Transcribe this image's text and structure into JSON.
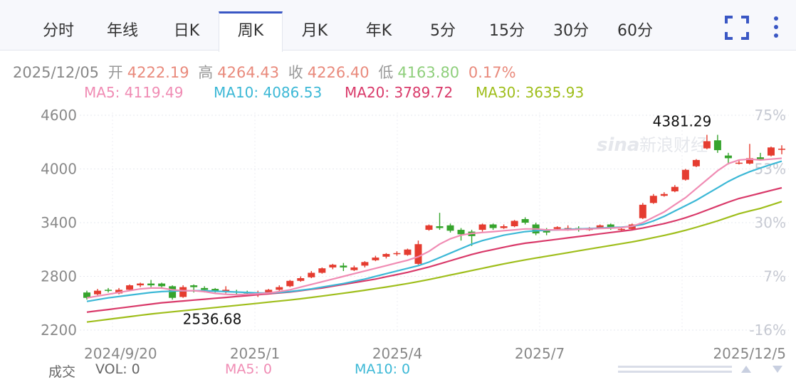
{
  "tabs": [
    "分时",
    "年线",
    "日K",
    "周K",
    "月K",
    "年K",
    "5分",
    "15分",
    "30分",
    "60分"
  ],
  "active_tab": "周K",
  "colors": {
    "up": "#e53c30",
    "down": "#36a42d",
    "accent": "#3a57c4",
    "ma5": "#f08cb4",
    "ma10": "#3cb8d6",
    "ma20": "#d93a6a",
    "ma30": "#9fbe1b"
  },
  "info": {
    "date": "2025/12/05",
    "open_label": "开",
    "open": "4222.19",
    "high_label": "高",
    "high": "4264.43",
    "close_label": "收",
    "close": "4226.40",
    "low_label": "低",
    "low": "4163.80",
    "change": "0.17%"
  },
  "ma_legend": {
    "ma5": "MA5: 4119.49",
    "ma10": "MA10: 4086.53",
    "ma20": "MA20: 3789.72",
    "ma30": "MA30: 3635.93"
  },
  "volume": {
    "label": "成交",
    "vol": "VOL: 0",
    "ma5": "MA5: 0",
    "ma10": "MA10: 0"
  },
  "watermark": {
    "logo": "sina",
    "text": "新浪财经"
  },
  "chart_data": {
    "type": "candlestick",
    "y_ticks": [
      "4600",
      "4000",
      "3400",
      "2800",
      "2200"
    ],
    "ylim": [
      2200,
      4600
    ],
    "right_ticks": [
      "75%",
      "53%",
      "30%",
      "7%",
      "-16%"
    ],
    "x_labels": [
      "2024/9/20",
      "2025/1",
      "2025/4",
      "2025/7",
      "2025/12/5"
    ],
    "annotations": {
      "high": "4381.29",
      "low": "2536.68"
    },
    "candles": [
      [
        2620,
        2560,
        2640,
        2540
      ],
      [
        2600,
        2640,
        2660,
        2590
      ],
      [
        2650,
        2640,
        2670,
        2620
      ],
      [
        2610,
        2650,
        2670,
        2600
      ],
      [
        2650,
        2700,
        2710,
        2640
      ],
      [
        2700,
        2720,
        2730,
        2680
      ],
      [
        2720,
        2700,
        2760,
        2680
      ],
      [
        2720,
        2690,
        2730,
        2660
      ],
      [
        2690,
        2560,
        2700,
        2540
      ],
      [
        2570,
        2680,
        2700,
        2560
      ],
      [
        2700,
        2680,
        2710,
        2620
      ],
      [
        2670,
        2650,
        2690,
        2620
      ],
      [
        2660,
        2640,
        2670,
        2620
      ],
      [
        2630,
        2650,
        2690,
        2610
      ],
      [
        2630,
        2620,
        2650,
        2600
      ],
      [
        2610,
        2600,
        2640,
        2580
      ],
      [
        2590,
        2620,
        2640,
        2570
      ],
      [
        2620,
        2650,
        2660,
        2600
      ],
      [
        2650,
        2680,
        2700,
        2640
      ],
      [
        2690,
        2750,
        2760,
        2680
      ],
      [
        2750,
        2780,
        2800,
        2740
      ],
      [
        2790,
        2840,
        2860,
        2780
      ],
      [
        2840,
        2890,
        2900,
        2830
      ],
      [
        2900,
        2930,
        2940,
        2880
      ],
      [
        2920,
        2900,
        2950,
        2860
      ],
      [
        2870,
        2900,
        2920,
        2860
      ],
      [
        2920,
        2960,
        2970,
        2900
      ],
      [
        2980,
        3010,
        3030,
        2970
      ],
      [
        3020,
        3050,
        3060,
        3000
      ],
      [
        3050,
        3060,
        3080,
        3030
      ],
      [
        3040,
        3100,
        3110,
        3030
      ],
      [
        2940,
        3160,
        3200,
        2930
      ],
      [
        3320,
        3370,
        3380,
        3310
      ],
      [
        3360,
        3340,
        3510,
        3320
      ],
      [
        3370,
        3310,
        3390,
        3290
      ],
      [
        3320,
        3270,
        3340,
        3200
      ],
      [
        3300,
        3250,
        3320,
        3140
      ],
      [
        3320,
        3380,
        3390,
        3300
      ],
      [
        3380,
        3340,
        3390,
        3320
      ],
      [
        3340,
        3360,
        3380,
        3330
      ],
      [
        3360,
        3420,
        3430,
        3350
      ],
      [
        3440,
        3400,
        3460,
        3380
      ],
      [
        3380,
        3280,
        3400,
        3260
      ],
      [
        3310,
        3290,
        3340,
        3260
      ],
      [
        3330,
        3350,
        3360,
        3320
      ],
      [
        3330,
        3340,
        3370,
        3310
      ],
      [
        3340,
        3320,
        3360,
        3300
      ],
      [
        3320,
        3330,
        3350,
        3310
      ],
      [
        3340,
        3370,
        3380,
        3330
      ],
      [
        3380,
        3340,
        3390,
        3320
      ],
      [
        3320,
        3330,
        3350,
        3300
      ],
      [
        3330,
        3380,
        3390,
        3320
      ],
      [
        3450,
        3600,
        3620,
        3440
      ],
      [
        3620,
        3700,
        3720,
        3610
      ],
      [
        3700,
        3720,
        3740,
        3690
      ],
      [
        3750,
        3800,
        3820,
        3740
      ],
      [
        3880,
        3990,
        4000,
        3870
      ],
      [
        4030,
        4100,
        4110,
        4020
      ],
      [
        4230,
        4310,
        4381.29,
        4220
      ],
      [
        4320,
        4210,
        4381.29,
        4180
      ],
      [
        4150,
        4120,
        4180,
        4050
      ],
      [
        4060,
        4070,
        4100,
        4050
      ],
      [
        4060,
        4120,
        4280,
        4050
      ],
      [
        4130,
        4110,
        4180,
        4100
      ],
      [
        4150,
        4240,
        4250,
        4140
      ],
      [
        4222.19,
        4226.4,
        4264.43,
        4163.8
      ]
    ],
    "ma5": [
      2560,
      2580,
      2600,
      2620,
      2640,
      2660,
      2670,
      2670,
      2650,
      2640,
      2640,
      2630,
      2610,
      2600,
      2595,
      2600,
      2605,
      2615,
      2630,
      2650,
      2680,
      2710,
      2740,
      2770,
      2800,
      2830,
      2860,
      2890,
      2920,
      2950,
      2980,
      3020,
      3080,
      3160,
      3220,
      3260,
      3280,
      3290,
      3300,
      3310,
      3320,
      3330,
      3330,
      3320,
      3320,
      3320,
      3325,
      3330,
      3335,
      3340,
      3345,
      3360,
      3400,
      3460,
      3520,
      3600,
      3680,
      3780,
      3880,
      3980,
      4060,
      4100,
      4110,
      4100,
      4110,
      4119.49
    ],
    "ma10": [
      2520,
      2540,
      2560,
      2575,
      2590,
      2605,
      2620,
      2630,
      2635,
      2640,
      2640,
      2640,
      2635,
      2630,
      2625,
      2620,
      2615,
      2615,
      2620,
      2630,
      2645,
      2660,
      2680,
      2700,
      2720,
      2745,
      2770,
      2800,
      2830,
      2860,
      2890,
      2920,
      2960,
      3010,
      3060,
      3110,
      3160,
      3200,
      3230,
      3260,
      3280,
      3300,
      3310,
      3315,
      3320,
      3325,
      3330,
      3335,
      3340,
      3345,
      3350,
      3360,
      3380,
      3420,
      3470,
      3530,
      3590,
      3650,
      3720,
      3790,
      3860,
      3920,
      3970,
      4010,
      4050,
      4086.53
    ],
    "ma20": [
      2400,
      2415,
      2430,
      2445,
      2460,
      2475,
      2490,
      2505,
      2515,
      2525,
      2535,
      2545,
      2555,
      2565,
      2575,
      2585,
      2595,
      2605,
      2615,
      2625,
      2640,
      2655,
      2670,
      2690,
      2710,
      2730,
      2750,
      2770,
      2795,
      2820,
      2845,
      2875,
      2905,
      2940,
      2975,
      3010,
      3045,
      3075,
      3100,
      3125,
      3150,
      3170,
      3185,
      3200,
      3215,
      3230,
      3245,
      3260,
      3275,
      3290,
      3305,
      3320,
      3340,
      3365,
      3390,
      3420,
      3455,
      3495,
      3540,
      3585,
      3630,
      3670,
      3700,
      3730,
      3760,
      3789.72
    ],
    "ma30": [
      2290,
      2305,
      2320,
      2335,
      2350,
      2365,
      2380,
      2392,
      2404,
      2416,
      2428,
      2440,
      2452,
      2464,
      2476,
      2488,
      2500,
      2512,
      2524,
      2536,
      2550,
      2565,
      2580,
      2596,
      2612,
      2628,
      2645,
      2663,
      2681,
      2700,
      2720,
      2742,
      2765,
      2790,
      2815,
      2840,
      2865,
      2890,
      2915,
      2940,
      2962,
      2984,
      3005,
      3025,
      3045,
      3065,
      3085,
      3105,
      3125,
      3145,
      3165,
      3185,
      3208,
      3232,
      3258,
      3285,
      3315,
      3348,
      3383,
      3420,
      3460,
      3500,
      3530,
      3560,
      3597,
      3635.93
    ]
  }
}
